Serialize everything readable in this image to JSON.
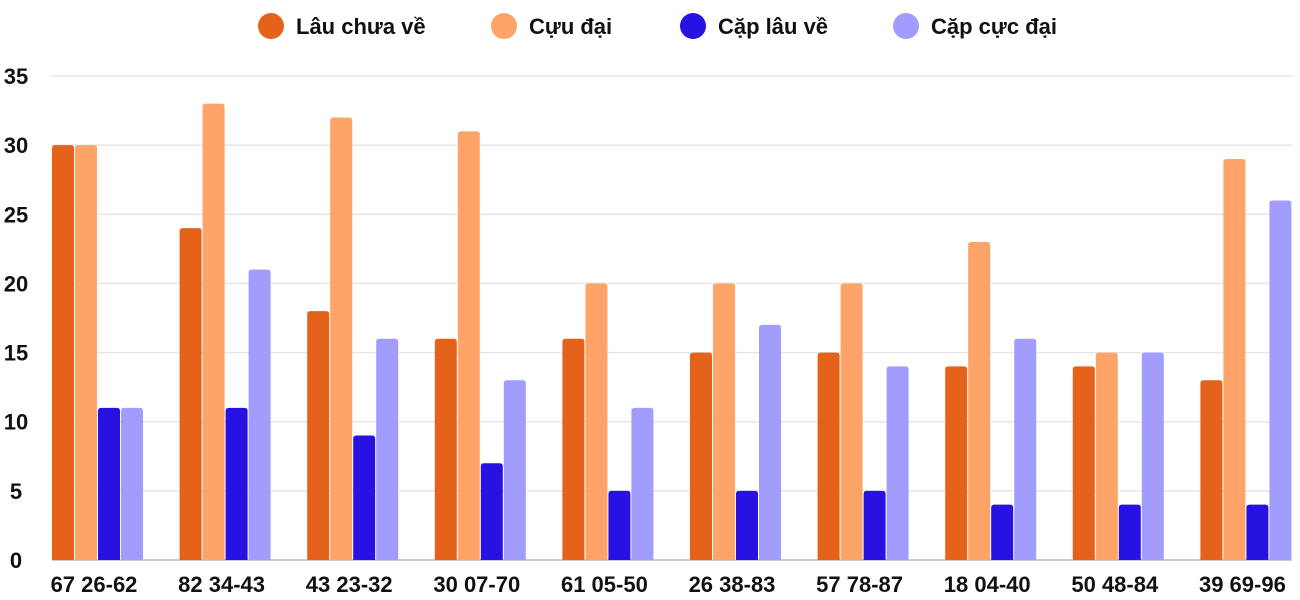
{
  "chart_data": {
    "type": "bar",
    "title": "",
    "xlabel": "",
    "ylabel": "",
    "ylim": [
      0,
      35
    ],
    "yticks": [
      0,
      5,
      10,
      15,
      20,
      25,
      30,
      35
    ],
    "grid": true,
    "legend_position": "top",
    "categories": [
      "67 26-62",
      "82 34-43",
      "43 23-32",
      "30 07-70",
      "61 05-50",
      "26 38-83",
      "57 78-87",
      "18 04-40",
      "50 48-84",
      "39 69-96"
    ],
    "series": [
      {
        "name": "Lâu chưa về",
        "color": "#E4621A",
        "values": [
          30,
          24,
          18,
          16,
          16,
          15,
          15,
          14,
          14,
          13
        ]
      },
      {
        "name": "Cựu đại",
        "color": "#FFA468",
        "values": [
          30,
          33,
          32,
          31,
          20,
          20,
          20,
          23,
          15,
          29
        ]
      },
      {
        "name": "Cặp lâu về",
        "color": "#2812E2",
        "values": [
          11,
          11,
          9,
          7,
          5,
          5,
          5,
          4,
          4,
          4
        ]
      },
      {
        "name": "Cặp cực đại",
        "color": "#A39CFF",
        "values": [
          11,
          21,
          16,
          13,
          11,
          17,
          14,
          16,
          15,
          26
        ]
      }
    ]
  }
}
